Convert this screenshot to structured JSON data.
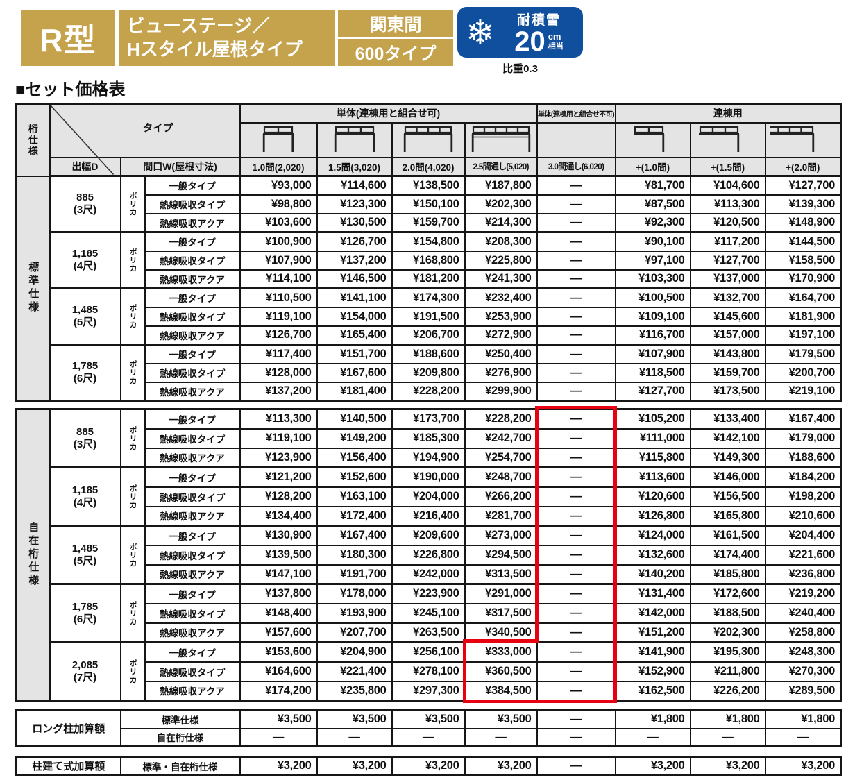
{
  "colors": {
    "gold": "#c5a24c",
    "blue": "#0f4f9e",
    "red": "#e60012",
    "header_gray": "#e4e4e4",
    "border": "#161616"
  },
  "header_banner": {
    "model": "R型",
    "title_line1": "ビューステージ／",
    "title_line2": "Hスタイル屋根タイプ",
    "module": "関東間",
    "series": "600タイプ",
    "badge": {
      "label": "耐積雪",
      "value": "20",
      "unit": "cm",
      "unit_suffix": "相当",
      "note": "比重0.3"
    }
  },
  "section_title": "■セット価格表",
  "table": {
    "corner_label": "桁仕様",
    "type_label": "タイプ",
    "depth_label": "出幅D",
    "width_label": "間口W(屋根寸法)",
    "groups_header": [
      {
        "label": "単体(連棟用と組合せ可)",
        "span": 4,
        "small": false
      },
      {
        "label": "単体(連棟用と組合せ不可)",
        "span": 1,
        "small": true
      },
      {
        "label": "連棟用",
        "span": 3,
        "small": false
      }
    ],
    "columns": [
      {
        "label": "1.0間(2,020)",
        "condensed": false,
        "icon": {
          "panels": 2,
          "legs": "both",
          "double": false
        }
      },
      {
        "label": "1.5間(3,020)",
        "condensed": false,
        "icon": {
          "panels": 3,
          "legs": "both",
          "double": false
        }
      },
      {
        "label": "2.0間(4,020)",
        "condensed": false,
        "icon": {
          "panels": 4,
          "legs": "both",
          "double": false
        }
      },
      {
        "label": "2.5間通し(5,020)",
        "condensed": true,
        "icon": {
          "panels": 5,
          "legs": "both",
          "double": true
        }
      },
      {
        "label": "3.0間通し(6,020)",
        "condensed": true,
        "icon": null
      },
      {
        "label": "+(1.0間)",
        "condensed": false,
        "icon": {
          "panels": 2,
          "legs": "right",
          "double": false
        }
      },
      {
        "label": "+(1.5間)",
        "condensed": false,
        "icon": {
          "panels": 3,
          "legs": "right",
          "double": false
        }
      },
      {
        "label": "+(2.0間)",
        "condensed": false,
        "icon": {
          "panels": 4,
          "legs": "right",
          "double": false
        }
      }
    ],
    "sections": [
      {
        "name": "標準仕様",
        "groups": [
          {
            "depth": "885",
            "shaku": "(3尺)",
            "material": "ポリカ",
            "rows": [
              {
                "type": "一般タイプ",
                "prices": [
                  "¥93,000",
                  "¥114,600",
                  "¥138,500",
                  "¥187,800",
                  "—",
                  "¥81,700",
                  "¥104,600",
                  "¥127,700"
                ]
              },
              {
                "type": "熱線吸収タイプ",
                "prices": [
                  "¥98,800",
                  "¥123,300",
                  "¥150,100",
                  "¥202,300",
                  "—",
                  "¥87,500",
                  "¥113,300",
                  "¥139,300"
                ]
              },
              {
                "type": "熱線吸収アクア",
                "prices": [
                  "¥103,600",
                  "¥130,500",
                  "¥159,700",
                  "¥214,300",
                  "—",
                  "¥92,300",
                  "¥120,500",
                  "¥148,900"
                ]
              }
            ]
          },
          {
            "depth": "1,185",
            "shaku": "(4尺)",
            "material": "ポリカ",
            "rows": [
              {
                "type": "一般タイプ",
                "prices": [
                  "¥100,900",
                  "¥126,700",
                  "¥154,800",
                  "¥208,300",
                  "—",
                  "¥90,100",
                  "¥117,200",
                  "¥144,500"
                ]
              },
              {
                "type": "熱線吸収タイプ",
                "prices": [
                  "¥107,900",
                  "¥137,200",
                  "¥168,800",
                  "¥225,800",
                  "—",
                  "¥97,100",
                  "¥127,700",
                  "¥158,500"
                ]
              },
              {
                "type": "熱線吸収アクア",
                "prices": [
                  "¥114,100",
                  "¥146,500",
                  "¥181,200",
                  "¥241,300",
                  "—",
                  "¥103,300",
                  "¥137,000",
                  "¥170,900"
                ]
              }
            ]
          },
          {
            "depth": "1,485",
            "shaku": "(5尺)",
            "material": "ポリカ",
            "rows": [
              {
                "type": "一般タイプ",
                "prices": [
                  "¥110,500",
                  "¥141,100",
                  "¥174,300",
                  "¥232,400",
                  "—",
                  "¥100,500",
                  "¥132,700",
                  "¥164,700"
                ]
              },
              {
                "type": "熱線吸収タイプ",
                "prices": [
                  "¥119,100",
                  "¥154,000",
                  "¥191,500",
                  "¥253,900",
                  "—",
                  "¥109,100",
                  "¥145,600",
                  "¥181,900"
                ]
              },
              {
                "type": "熱線吸収アクア",
                "prices": [
                  "¥126,700",
                  "¥165,400",
                  "¥206,700",
                  "¥272,900",
                  "—",
                  "¥116,700",
                  "¥157,000",
                  "¥197,100"
                ]
              }
            ]
          },
          {
            "depth": "1,785",
            "shaku": "(6尺)",
            "material": "ポリカ",
            "rows": [
              {
                "type": "一般タイプ",
                "prices": [
                  "¥117,400",
                  "¥151,700",
                  "¥188,600",
                  "¥250,400",
                  "—",
                  "¥107,900",
                  "¥143,800",
                  "¥179,500"
                ]
              },
              {
                "type": "熱線吸収タイプ",
                "prices": [
                  "¥128,000",
                  "¥167,600",
                  "¥209,800",
                  "¥276,900",
                  "—",
                  "¥118,500",
                  "¥159,700",
                  "¥200,700"
                ]
              },
              {
                "type": "熱線吸収アクア",
                "prices": [
                  "¥137,200",
                  "¥181,400",
                  "¥228,200",
                  "¥299,900",
                  "—",
                  "¥127,700",
                  "¥173,500",
                  "¥219,100"
                ]
              }
            ]
          }
        ]
      },
      {
        "name": "自在桁仕様",
        "groups": [
          {
            "depth": "885",
            "shaku": "(3尺)",
            "material": "ポリカ",
            "rows": [
              {
                "type": "一般タイプ",
                "prices": [
                  "¥113,300",
                  "¥140,500",
                  "¥173,700",
                  "¥228,200",
                  "—",
                  "¥105,200",
                  "¥133,400",
                  "¥167,400"
                ]
              },
              {
                "type": "熱線吸収タイプ",
                "prices": [
                  "¥119,100",
                  "¥149,200",
                  "¥185,300",
                  "¥242,700",
                  "—",
                  "¥111,000",
                  "¥142,100",
                  "¥179,000"
                ]
              },
              {
                "type": "熱線吸収アクア",
                "prices": [
                  "¥123,900",
                  "¥156,400",
                  "¥194,900",
                  "¥254,700",
                  "—",
                  "¥115,800",
                  "¥149,300",
                  "¥188,600"
                ]
              }
            ]
          },
          {
            "depth": "1,185",
            "shaku": "(4尺)",
            "material": "ポリカ",
            "rows": [
              {
                "type": "一般タイプ",
                "prices": [
                  "¥121,200",
                  "¥152,600",
                  "¥190,000",
                  "¥248,700",
                  "—",
                  "¥113,600",
                  "¥146,000",
                  "¥184,200"
                ]
              },
              {
                "type": "熱線吸収タイプ",
                "prices": [
                  "¥128,200",
                  "¥163,100",
                  "¥204,000",
                  "¥266,200",
                  "—",
                  "¥120,600",
                  "¥156,500",
                  "¥198,200"
                ]
              },
              {
                "type": "熱線吸収アクア",
                "prices": [
                  "¥134,400",
                  "¥172,400",
                  "¥216,400",
                  "¥281,700",
                  "—",
                  "¥126,800",
                  "¥165,800",
                  "¥210,600"
                ]
              }
            ]
          },
          {
            "depth": "1,485",
            "shaku": "(5尺)",
            "material": "ポリカ",
            "rows": [
              {
                "type": "一般タイプ",
                "prices": [
                  "¥130,900",
                  "¥167,400",
                  "¥209,600",
                  "¥273,000",
                  "—",
                  "¥124,000",
                  "¥161,500",
                  "¥204,400"
                ]
              },
              {
                "type": "熱線吸収タイプ",
                "prices": [
                  "¥139,500",
                  "¥180,300",
                  "¥226,800",
                  "¥294,500",
                  "—",
                  "¥132,600",
                  "¥174,400",
                  "¥221,600"
                ]
              },
              {
                "type": "熱線吸収アクア",
                "prices": [
                  "¥147,100",
                  "¥191,700",
                  "¥242,000",
                  "¥313,500",
                  "—",
                  "¥140,200",
                  "¥185,800",
                  "¥236,800"
                ]
              }
            ]
          },
          {
            "depth": "1,785",
            "shaku": "(6尺)",
            "material": "ポリカ",
            "rows": [
              {
                "type": "一般タイプ",
                "prices": [
                  "¥137,800",
                  "¥178,000",
                  "¥223,900",
                  "¥291,000",
                  "—",
                  "¥131,400",
                  "¥172,600",
                  "¥219,200"
                ]
              },
              {
                "type": "熱線吸収タイプ",
                "prices": [
                  "¥148,400",
                  "¥193,900",
                  "¥245,100",
                  "¥317,500",
                  "—",
                  "¥142,000",
                  "¥188,500",
                  "¥240,400"
                ]
              },
              {
                "type": "熱線吸収アクア",
                "prices": [
                  "¥157,600",
                  "¥207,700",
                  "¥263,500",
                  "¥340,500",
                  "—",
                  "¥151,200",
                  "¥202,300",
                  "¥258,800"
                ]
              }
            ]
          },
          {
            "depth": "2,085",
            "shaku": "(7尺)",
            "material": "ポリカ",
            "rows": [
              {
                "type": "一般タイプ",
                "prices": [
                  "¥153,600",
                  "¥204,900",
                  "¥256,100",
                  "¥333,000",
                  "—",
                  "¥141,900",
                  "¥195,300",
                  "¥248,300"
                ]
              },
              {
                "type": "熱線吸収タイプ",
                "prices": [
                  "¥164,600",
                  "¥221,400",
                  "¥278,100",
                  "¥360,500",
                  "—",
                  "¥152,900",
                  "¥211,800",
                  "¥270,300"
                ]
              },
              {
                "type": "熱線吸収アクア",
                "prices": [
                  "¥174,200",
                  "¥235,800",
                  "¥297,300",
                  "¥384,500",
                  "—",
                  "¥162,500",
                  "¥226,200",
                  "¥289,500"
                ]
              }
            ]
          }
        ]
      }
    ],
    "addons": [
      {
        "name": "ロング柱加算額",
        "rows": [
          {
            "label": "標準仕様",
            "prices": [
              "¥3,500",
              "¥3,500",
              "¥3,500",
              "¥3,500",
              "—",
              "¥1,800",
              "¥1,800",
              "¥1,800"
            ]
          },
          {
            "label": "自在桁仕様",
            "prices": [
              "—",
              "—",
              "—",
              "—",
              "—",
              "—",
              "—",
              "—"
            ]
          }
        ]
      },
      {
        "name": "柱建て式加算額",
        "rows": [
          {
            "label": "標準・自在桁仕様",
            "prices": [
              "¥3,200",
              "¥3,200",
              "¥3,200",
              "¥3,200",
              "—",
              "¥3,200",
              "¥3,200",
              "¥3,200"
            ]
          }
        ]
      }
    ]
  }
}
